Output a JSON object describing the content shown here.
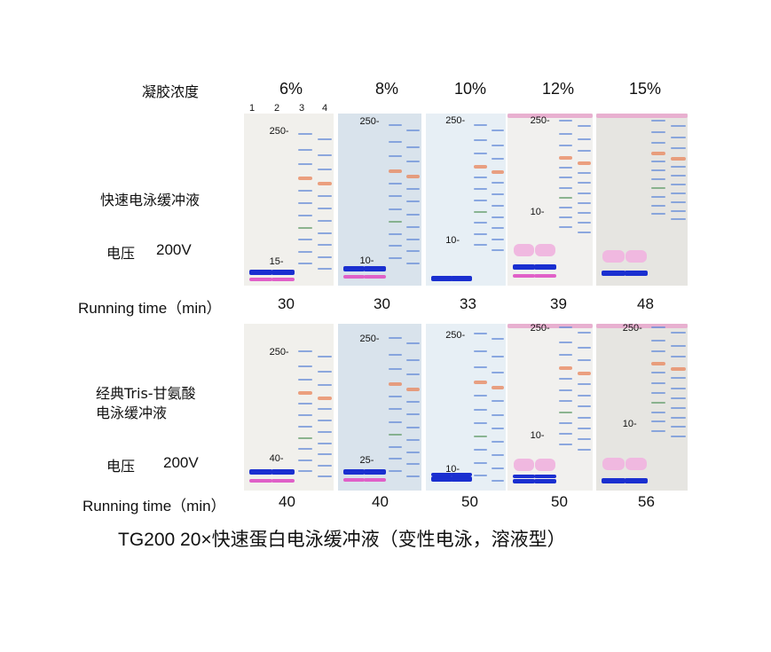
{
  "header": {
    "gel_concentration_label": "凝胶浓度",
    "concentrations": [
      "6%",
      "8%",
      "10%",
      "12%",
      "15%"
    ],
    "lane_numbers": [
      "1",
      "2",
      "3",
      "4"
    ]
  },
  "top_row": {
    "buffer_label": "快速电泳缓冲液",
    "voltage_label": "电压",
    "voltage_value": "200V",
    "running_time_label": "Running time（min）",
    "running_times": [
      "30",
      "30",
      "33",
      "39",
      "48"
    ],
    "marker_labels": [
      [
        "250-",
        "15-"
      ],
      [
        "250-",
        "10-"
      ],
      [
        "250-",
        "10-"
      ],
      [
        "250-",
        "10-"
      ],
      []
    ]
  },
  "bottom_row": {
    "buffer_label_line1": "经典Tris-甘氨酸",
    "buffer_label_line2": "电泳缓冲液",
    "voltage_label": "电压",
    "voltage_value": "200V",
    "running_time_label": "Running time（min）",
    "running_times": [
      "40",
      "40",
      "50",
      "50",
      "56"
    ],
    "marker_labels": [
      [
        "250-",
        "40-"
      ],
      [
        "250-",
        "25-"
      ],
      [
        "250-",
        "10-"
      ],
      [
        "250-",
        "10-"
      ],
      [
        "250-",
        "10-"
      ]
    ]
  },
  "caption": "TG200  20×快速蛋白电泳缓冲液（变性电泳，溶液型）",
  "colors": {
    "sample_blue": "#1a2fd0",
    "sample_pink": "#e060c8",
    "marker_blue": "#6a8fd8",
    "marker_orange": "#e8845a",
    "marker_green": "#6aa070"
  }
}
